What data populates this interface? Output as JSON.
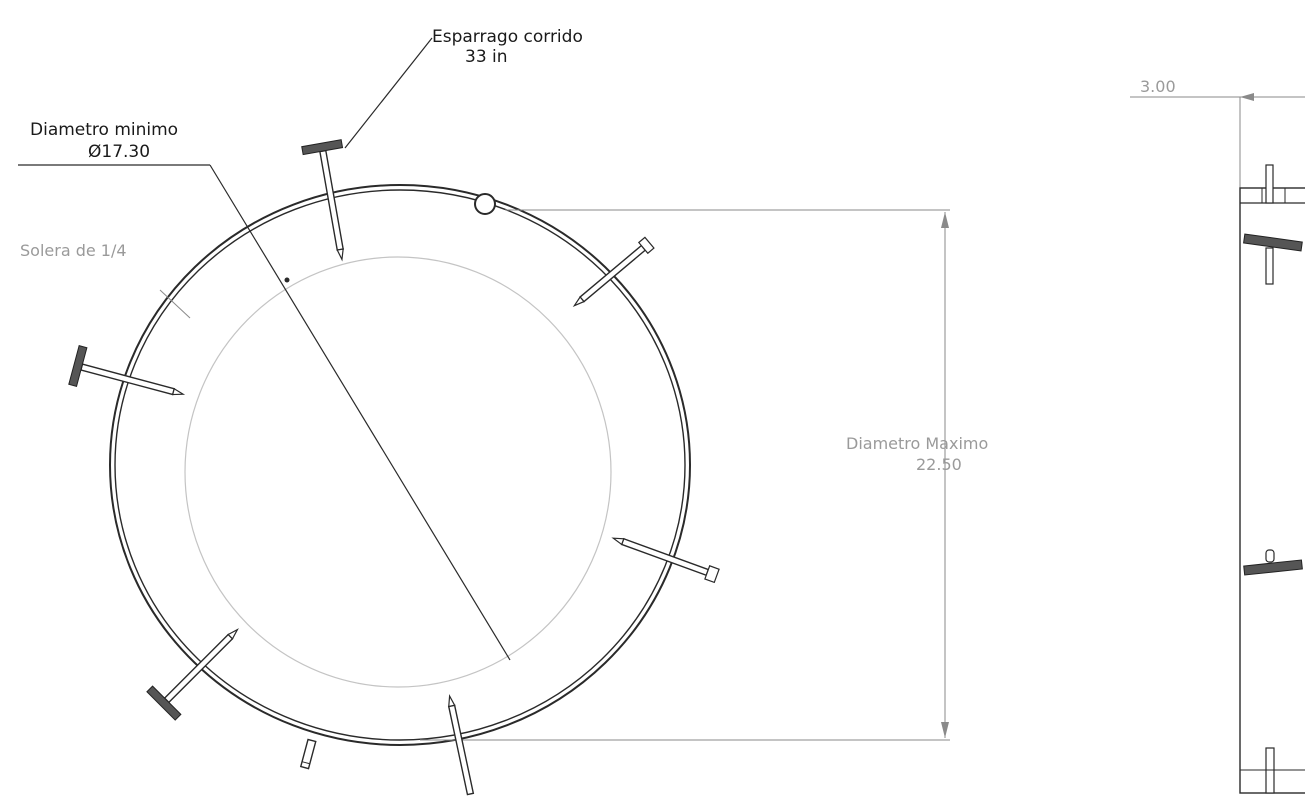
{
  "drawing": {
    "labels": {
      "stud_title": "Esparrago corrido",
      "stud_length": "33 in",
      "min_diameter_title": "Diametro minimo",
      "min_diameter_value": "Ø17.30",
      "plate_label": "Solera de 1/4",
      "max_diameter_title": "Diametro Maximo",
      "max_diameter_value": "22.50",
      "side_width": "3.00"
    },
    "colors": {
      "line": "#2a2a2a",
      "dimension_text": "#9a9a9a",
      "label_text": "#1a1a1a",
      "inner_circle": "#c4c4c4"
    }
  }
}
